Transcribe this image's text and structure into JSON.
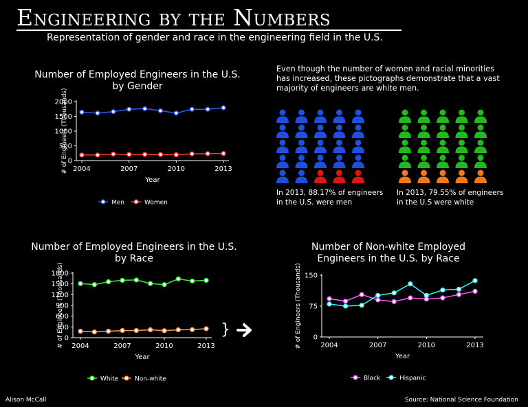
{
  "header": {
    "title": "Engineering by the Numbers",
    "subtitle": "Representation of gender and race in the engineering field in the U.S."
  },
  "intro": "Even though the number of women and racial minorities has increased, these pictographs demonstrate that a vast majority of engineers are white men.",
  "pictographs": [
    {
      "caption": "In 2013, 88.17% of engineers in the U.S. were men",
      "majority_color": "#1e4fe0",
      "minority_color": "#e01414",
      "majority_count": 22,
      "total": 25
    },
    {
      "caption": "In 2013, 79.55% of engineers in the U.S were white",
      "majority_color": "#22b81e",
      "minority_color": "#f07a18",
      "majority_count": 20,
      "total": 25
    }
  ],
  "footer": {
    "credit": "Alison McCall",
    "source": "Source: National Science Foundation"
  },
  "colors": {
    "men": "#2f5cff",
    "women": "#ff3b3b",
    "white": "#3ef03e",
    "nonwhite": "#ff9a4a",
    "black": "#ff5cff",
    "hispanic": "#2fffff"
  },
  "chart_data": [
    {
      "type": "line",
      "title": "Number of Employed Engineers in the U.S. by Gender",
      "xlabel": "Year",
      "ylabel": "# of Engineers (Thousands)",
      "x": [
        2004,
        2005,
        2006,
        2007,
        2008,
        2009,
        2010,
        2011,
        2012,
        2013
      ],
      "xticks": [
        "2004",
        "2007",
        "2010",
        "2013"
      ],
      "yticks": [
        "0",
        "500",
        "1000",
        "1500",
        "2000"
      ],
      "ylim": [
        0,
        2000
      ],
      "series": [
        {
          "name": "Men",
          "color": "#2f5cff",
          "values": [
            1640,
            1610,
            1660,
            1740,
            1760,
            1690,
            1610,
            1740,
            1740,
            1790
          ]
        },
        {
          "name": "Women",
          "color": "#ff3b3b",
          "values": [
            190,
            190,
            220,
            210,
            210,
            205,
            200,
            230,
            235,
            240
          ]
        }
      ]
    },
    {
      "type": "line",
      "title": "Number of Employed Engineers in the U.S. by Race",
      "xlabel": "Year",
      "ylabel": "# of Engineers (Thousands)",
      "x": [
        2004,
        2005,
        2006,
        2007,
        2008,
        2009,
        2010,
        2011,
        2012,
        2013
      ],
      "xticks": [
        "2004",
        "2007",
        "2010",
        "2013"
      ],
      "yticks": [
        "0",
        "300",
        "600",
        "900",
        "1200",
        "1500",
        "1800"
      ],
      "ylim": [
        0,
        1800
      ],
      "series": [
        {
          "name": "White",
          "color": "#3ef03e",
          "values": [
            1510,
            1480,
            1560,
            1600,
            1610,
            1510,
            1480,
            1640,
            1580,
            1600
          ]
        },
        {
          "name": "Non-white",
          "color": "#ff9a4a",
          "values": [
            180,
            160,
            180,
            200,
            200,
            220,
            195,
            220,
            225,
            250
          ]
        }
      ]
    },
    {
      "type": "line",
      "title": "Number of Non-white Employed Engineers in the U.S. by Race",
      "xlabel": "Year",
      "ylabel": "# of Engineers (Thousands)",
      "x": [
        2004,
        2005,
        2006,
        2007,
        2008,
        2009,
        2010,
        2011,
        2012,
        2013
      ],
      "xticks": [
        "2004",
        "2007",
        "2010",
        "2013"
      ],
      "yticks": [
        "0",
        "75",
        "150"
      ],
      "ylim": [
        0,
        150
      ],
      "series": [
        {
          "name": "Black",
          "color": "#ff5cff",
          "values": [
            93,
            87,
            103,
            90,
            86,
            95,
            92,
            95,
            103,
            111
          ]
        },
        {
          "name": "Hispanic",
          "color": "#2fffff",
          "values": [
            80,
            75,
            77,
            101,
            107,
            129,
            101,
            114,
            116,
            137
          ]
        }
      ]
    }
  ]
}
